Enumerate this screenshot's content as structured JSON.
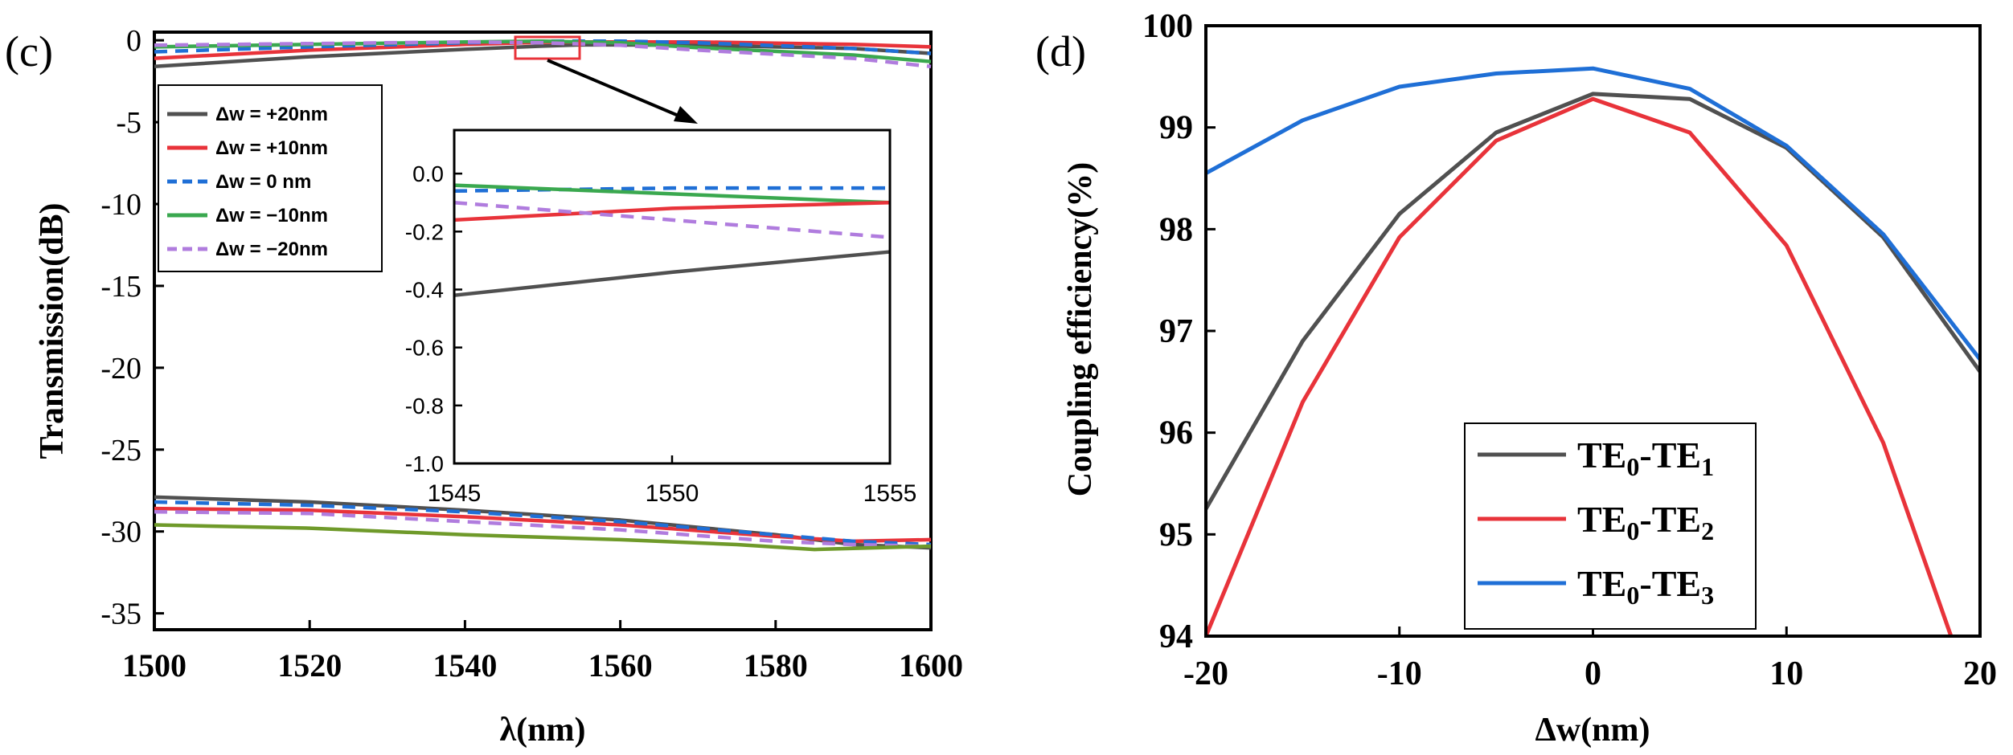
{
  "panels": {
    "c": {
      "label": "(c)"
    },
    "d": {
      "label": "(d)"
    }
  },
  "colors": {
    "black": "#505050",
    "red": "#e8333a",
    "blue": "#1f6fd6",
    "green": "#3aa84f",
    "purple": "#b07cde",
    "olive": "#6f9a2a"
  },
  "chart_data": [
    {
      "id": "c-main",
      "type": "line",
      "title": "",
      "xlabel": "λ(nm)",
      "ylabel": "Transmission(dB)",
      "xlim": [
        1500,
        1600
      ],
      "ylim": [
        -36,
        0.5
      ],
      "xticks": [
        1500,
        1520,
        1540,
        1560,
        1580,
        1600
      ],
      "yticks": [
        0,
        -5,
        -10,
        -15,
        -20,
        -25,
        -30,
        -35
      ],
      "series": [
        {
          "name": "Δw = +20nm",
          "color": "#505050",
          "dash": false,
          "legend": true,
          "x": [
            1500,
            1520,
            1540,
            1550,
            1555,
            1570,
            1590,
            1600
          ],
          "y": [
            -1.6,
            -1.0,
            -0.55,
            -0.35,
            -0.27,
            -0.3,
            -0.5,
            -0.8
          ]
        },
        {
          "name": "Δw = +10nm",
          "color": "#e8333a",
          "dash": false,
          "legend": true,
          "x": [
            1500,
            1520,
            1540,
            1550,
            1555,
            1570,
            1590,
            1600
          ],
          "y": [
            -1.1,
            -0.6,
            -0.25,
            -0.12,
            -0.1,
            -0.1,
            -0.25,
            -0.4
          ]
        },
        {
          "name": "Δw =  0 nm",
          "color": "#1f6fd6",
          "dash": true,
          "legend": true,
          "x": [
            1500,
            1520,
            1540,
            1550,
            1560,
            1570,
            1590,
            1600
          ],
          "y": [
            -0.7,
            -0.4,
            -0.15,
            -0.05,
            -0.05,
            -0.15,
            -0.5,
            -0.8
          ]
        },
        {
          "name": "Δw = −10nm",
          "color": "#3aa84f",
          "dash": false,
          "legend": true,
          "x": [
            1500,
            1520,
            1540,
            1550,
            1560,
            1570,
            1590,
            1600
          ],
          "y": [
            -0.4,
            -0.25,
            -0.1,
            -0.05,
            -0.15,
            -0.45,
            -0.9,
            -1.3
          ]
        },
        {
          "name": "Δw = −20nm",
          "color": "#b07cde",
          "dash": true,
          "legend": true,
          "x": [
            1500,
            1520,
            1540,
            1550,
            1560,
            1570,
            1590,
            1600
          ],
          "y": [
            -0.3,
            -0.2,
            -0.1,
            -0.15,
            -0.3,
            -0.6,
            -1.1,
            -1.6
          ]
        },
        {
          "name": "+20nm lower",
          "color": "#505050",
          "dash": false,
          "legend": false,
          "x": [
            1500,
            1520,
            1540,
            1560,
            1580,
            1590,
            1600
          ],
          "y": [
            -27.9,
            -28.2,
            -28.7,
            -29.3,
            -30.2,
            -30.8,
            -31.0
          ]
        },
        {
          "name": "+10nm lower",
          "color": "#e8333a",
          "dash": false,
          "legend": false,
          "x": [
            1500,
            1520,
            1540,
            1560,
            1580,
            1590,
            1600
          ],
          "y": [
            -28.6,
            -28.7,
            -29.1,
            -29.6,
            -30.3,
            -30.6,
            -30.5
          ]
        },
        {
          "name": "0nm lower",
          "color": "#1f6fd6",
          "dash": true,
          "legend": false,
          "x": [
            1500,
            1520,
            1540,
            1560,
            1580,
            1590,
            1600
          ],
          "y": [
            -28.2,
            -28.4,
            -28.8,
            -29.4,
            -30.2,
            -30.6,
            -30.8
          ]
        },
        {
          "name": "-20nm lower",
          "color": "#b07cde",
          "dash": true,
          "legend": false,
          "x": [
            1500,
            1520,
            1540,
            1560,
            1580,
            1590,
            1600
          ],
          "y": [
            -28.8,
            -28.9,
            -29.4,
            -29.9,
            -30.6,
            -30.8,
            -30.9
          ]
        },
        {
          "name": "-10nm lower",
          "color": "#6f9a2a",
          "dash": false,
          "legend": false,
          "x": [
            1500,
            1520,
            1540,
            1560,
            1575,
            1585,
            1600
          ],
          "y": [
            -29.6,
            -29.8,
            -30.2,
            -30.5,
            -30.8,
            -31.1,
            -30.9
          ]
        }
      ],
      "inset": {
        "xlim": [
          1545,
          1555
        ],
        "ylim": [
          -1.0,
          0.15
        ],
        "xticks": [
          1545,
          1550,
          1555
        ],
        "yticks": [
          0.0,
          -0.2,
          -0.4,
          -0.6,
          -0.8,
          -1.0
        ],
        "ytick_labels": [
          "0.0",
          "-0.2",
          "-0.4",
          "-0.6",
          "-0.8",
          "-1.0"
        ],
        "series": [
          {
            "color": "#1f6fd6",
            "dash": true,
            "x": [
              1545,
              1550,
              1555
            ],
            "y": [
              -0.06,
              -0.05,
              -0.05
            ]
          },
          {
            "color": "#3aa84f",
            "dash": false,
            "x": [
              1545,
              1550,
              1555
            ],
            "y": [
              -0.04,
              -0.07,
              -0.1
            ]
          },
          {
            "color": "#e8333a",
            "dash": false,
            "x": [
              1545,
              1550,
              1555
            ],
            "y": [
              -0.16,
              -0.12,
              -0.1
            ]
          },
          {
            "color": "#b07cde",
            "dash": true,
            "x": [
              1545,
              1550,
              1555
            ],
            "y": [
              -0.1,
              -0.16,
              -0.22
            ]
          },
          {
            "color": "#505050",
            "dash": false,
            "x": [
              1545,
              1550,
              1555
            ],
            "y": [
              -0.42,
              -0.34,
              -0.27
            ]
          }
        ]
      }
    },
    {
      "id": "d",
      "type": "line",
      "title": "",
      "xlabel": "Δw(nm)",
      "ylabel": "Coupling efficiency(%)",
      "xlim": [
        -20,
        20
      ],
      "ylim": [
        94,
        100
      ],
      "xticks": [
        -20,
        -10,
        0,
        10,
        20
      ],
      "yticks": [
        94,
        95,
        96,
        97,
        98,
        99,
        100
      ],
      "series": [
        {
          "name": "TE0-TE1",
          "base": "TE",
          "sub1": "0",
          "sub2": "1",
          "color": "#505050",
          "x": [
            -20,
            -15,
            -10,
            -5,
            0,
            5,
            10,
            15,
            20
          ],
          "y": [
            95.25,
            96.9,
            98.15,
            98.95,
            99.33,
            99.28,
            98.8,
            97.92,
            96.6
          ]
        },
        {
          "name": "TE0-TE2",
          "base": "TE",
          "sub1": "0",
          "sub2": "2",
          "color": "#e8333a",
          "x": [
            -20,
            -15,
            -10,
            -5,
            0,
            5,
            10,
            15,
            18.5
          ],
          "y": [
            94.0,
            96.3,
            97.92,
            98.87,
            99.28,
            98.95,
            97.84,
            95.9,
            94.0
          ]
        },
        {
          "name": "TE0-TE3",
          "base": "TE",
          "sub1": "0",
          "sub2": "3",
          "color": "#1f6fd6",
          "x": [
            -20,
            -15,
            -10,
            -5,
            0,
            5,
            10,
            15,
            20
          ],
          "y": [
            98.55,
            99.07,
            99.4,
            99.53,
            99.58,
            99.38,
            98.82,
            97.95,
            96.72
          ]
        }
      ]
    }
  ]
}
